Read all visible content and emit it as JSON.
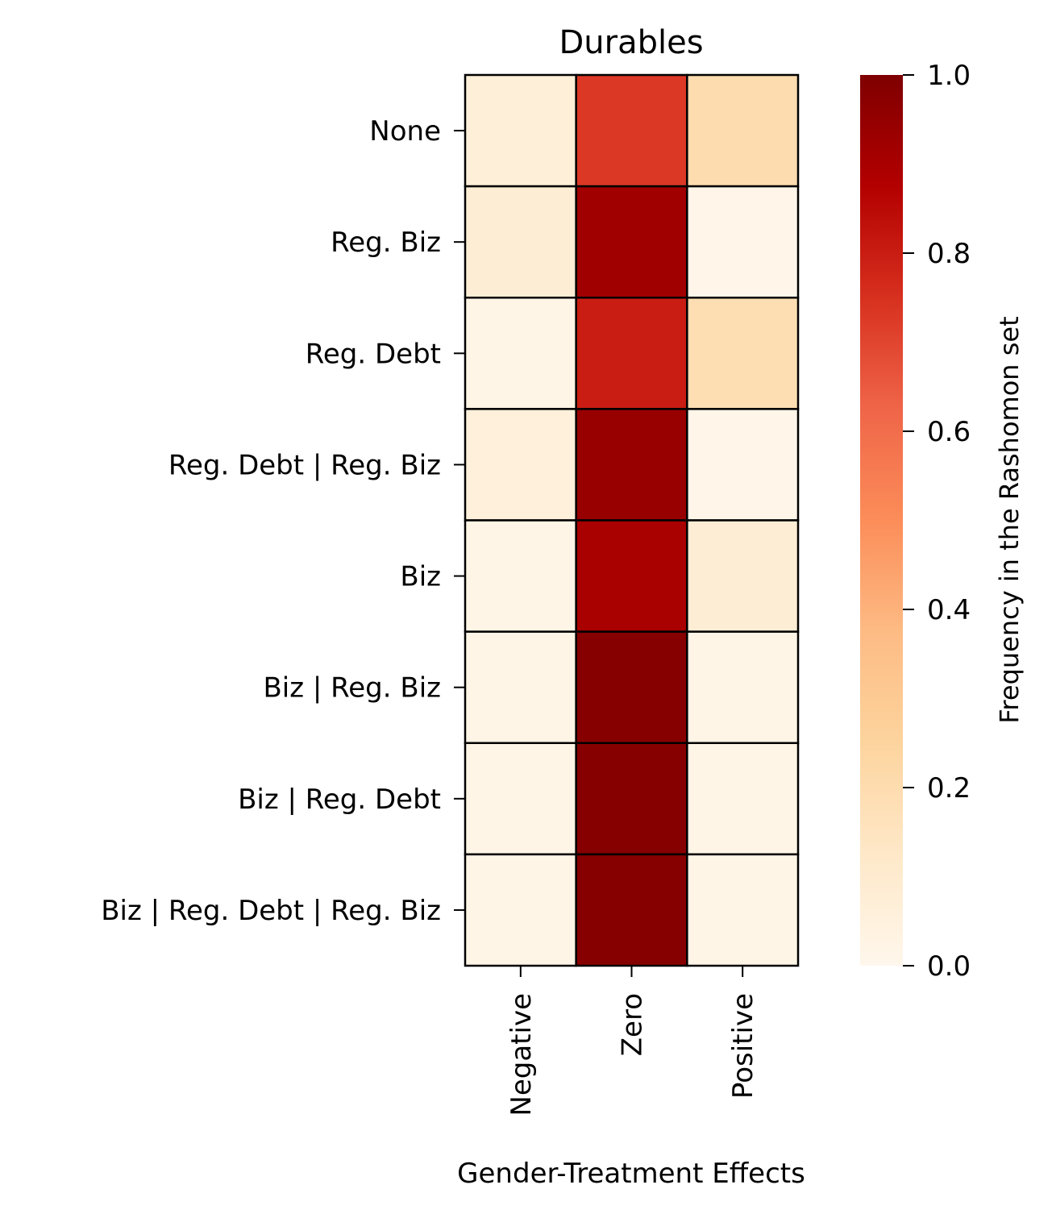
{
  "chart_data": {
    "type": "heatmap",
    "title": "Durables",
    "xlabel": "Gender-Treatment Effects",
    "ylabel": "",
    "x_categories": [
      "Negative",
      "Zero",
      "Positive"
    ],
    "y_categories": [
      "None",
      "Reg. Biz",
      "Reg. Debt",
      "Reg. Debt | Reg. Biz",
      "Biz",
      "Biz | Reg. Biz",
      "Biz | Reg. Debt",
      "Biz | Reg. Debt | Reg. Biz"
    ],
    "values": [
      [
        0.07,
        0.73,
        0.2
      ],
      [
        0.08,
        0.92,
        0.01
      ],
      [
        0.02,
        0.8,
        0.19
      ],
      [
        0.06,
        0.94,
        0.01
      ],
      [
        0.02,
        0.9,
        0.08
      ],
      [
        0.02,
        0.98,
        0.02
      ],
      [
        0.02,
        0.98,
        0.02
      ],
      [
        0.02,
        0.98,
        0.02
      ]
    ],
    "colorbar": {
      "label": "Frequency in the Rashomon set",
      "range": [
        0.0,
        1.0
      ],
      "ticks": [
        "0.0",
        "0.2",
        "0.4",
        "0.6",
        "0.8",
        "1.0"
      ],
      "colormap": "OrRd"
    }
  }
}
